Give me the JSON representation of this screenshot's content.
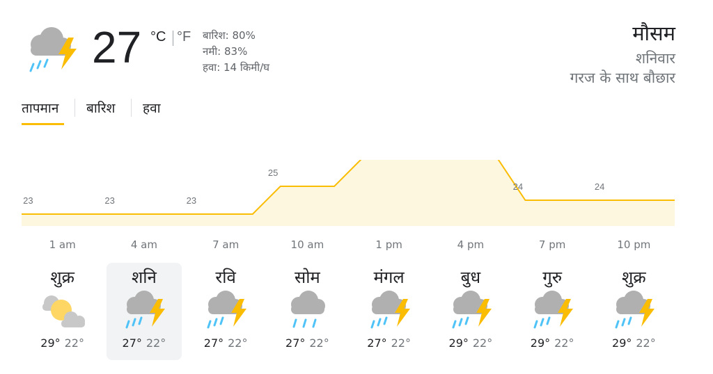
{
  "current": {
    "temperature": "27",
    "unit_c": "°C",
    "unit_f": "°F",
    "precipitation": "बारिश: 80%",
    "humidity": "नमी: 83%",
    "wind": "हवा: 14 किमी/घ",
    "icon": "thunderstorm-icon"
  },
  "header": {
    "title": "मौसम",
    "day": "शनिवार",
    "condition": "गरज के साथ बौछार"
  },
  "tabs": [
    {
      "label": "तापमान",
      "active": true
    },
    {
      "label": "बारिश",
      "active": false
    },
    {
      "label": "हवा",
      "active": false
    }
  ],
  "colors": {
    "accent": "#fbbc04",
    "fill": "#fef7e0",
    "rain": "#4fc3f7",
    "cloud": "#b0b0b0"
  },
  "chart_data": {
    "type": "area",
    "x": [
      "1 am",
      "4 am",
      "7 am",
      "10 am",
      "1 pm",
      "4 pm",
      "7 pm",
      "10 pm"
    ],
    "values": [
      23,
      23,
      23,
      25,
      27,
      27,
      24,
      24
    ],
    "series": [
      {
        "values": [
          23,
          23,
          23,
          25,
          27,
          27,
          24,
          24
        ]
      }
    ]
  },
  "hours": [
    "1 am",
    "4 am",
    "7 am",
    "10 am",
    "1 pm",
    "4 pm",
    "7 pm",
    "10 pm"
  ],
  "days": [
    {
      "name": "शुक्र",
      "high": "29°",
      "low": "22°",
      "icon": "partly-cloudy-icon",
      "selected": false
    },
    {
      "name": "शनि",
      "high": "27°",
      "low": "22°",
      "icon": "thunderstorm-icon",
      "selected": true
    },
    {
      "name": "रवि",
      "high": "27°",
      "low": "22°",
      "icon": "thunderstorm-icon",
      "selected": false
    },
    {
      "name": "सोम",
      "high": "27°",
      "low": "22°",
      "icon": "rain-icon",
      "selected": false
    },
    {
      "name": "मंगल",
      "high": "27°",
      "low": "22°",
      "icon": "thunderstorm-icon",
      "selected": false
    },
    {
      "name": "बुध",
      "high": "29°",
      "low": "22°",
      "icon": "thunderstorm-icon",
      "selected": false
    },
    {
      "name": "गुरु",
      "high": "29°",
      "low": "22°",
      "icon": "thunderstorm-icon",
      "selected": false
    },
    {
      "name": "शुक्र",
      "high": "29°",
      "low": "22°",
      "icon": "thunderstorm-icon",
      "selected": false
    }
  ]
}
